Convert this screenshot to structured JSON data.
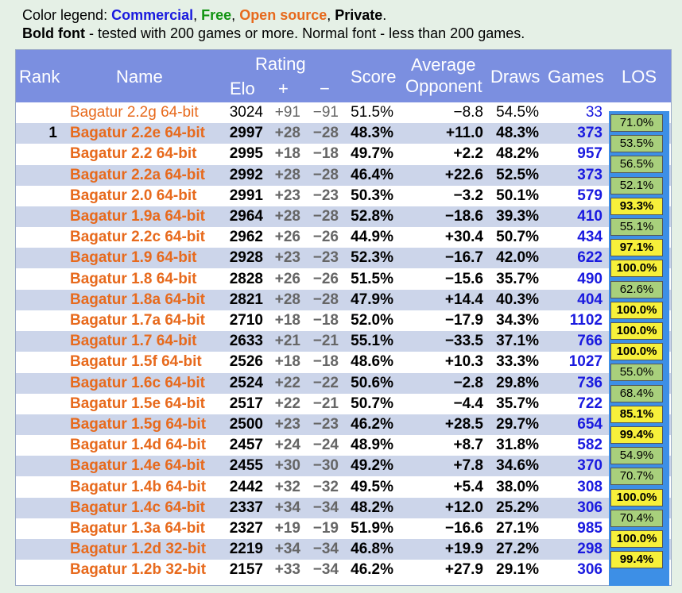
{
  "legend": {
    "line1_prefix": "Color legend: ",
    "commercial": "Commercial",
    "sep1": ", ",
    "free": "Free",
    "sep2": ", ",
    "open_source": "Open source",
    "sep3": ", ",
    "private": "Private",
    "end": ".",
    "line2_bold": "Bold font",
    "line2_rest": " - tested with 200 games or more. Normal font - less than 200 games."
  },
  "colors": {
    "commercial": "#1a1adf",
    "free": "#129412",
    "open_source": "#e76a1d",
    "header_bg": "#7b8fe0",
    "alt_row": "#ccd5ea",
    "los_green": "#a8d07c",
    "los_yellow": "#f7f03a"
  },
  "header": {
    "rank": "Rank",
    "name": "Name",
    "rating": "Rating",
    "elo": "Elo",
    "plus": "+",
    "minus": "−",
    "score": "Score",
    "avg1": "Average",
    "avg2": "Opponent",
    "draws": "Draws",
    "games": "Games",
    "los": "LOS"
  },
  "rows": [
    {
      "rank": "",
      "name": "Bagatur 2.2g 64-bit",
      "elo": "3024",
      "plus": "+91",
      "minus": "−91",
      "score": "51.5%",
      "opp": "−8.8",
      "draws": "54.5%",
      "games": "33",
      "bold": false
    },
    {
      "rank": "1",
      "name": "Bagatur 2.2e 64-bit",
      "elo": "2997",
      "plus": "+28",
      "minus": "−28",
      "score": "48.3%",
      "opp": "+11.0",
      "draws": "48.3%",
      "games": "373",
      "bold": true
    },
    {
      "rank": "",
      "name": "Bagatur 2.2 64-bit",
      "elo": "2995",
      "plus": "+18",
      "minus": "−18",
      "score": "49.7%",
      "opp": "+2.2",
      "draws": "48.2%",
      "games": "957",
      "bold": true
    },
    {
      "rank": "",
      "name": "Bagatur 2.2a 64-bit",
      "elo": "2992",
      "plus": "+28",
      "minus": "−28",
      "score": "46.4%",
      "opp": "+22.6",
      "draws": "52.5%",
      "games": "373",
      "bold": true
    },
    {
      "rank": "",
      "name": "Bagatur 2.0 64-bit",
      "elo": "2991",
      "plus": "+23",
      "minus": "−23",
      "score": "50.3%",
      "opp": "−3.2",
      "draws": "50.1%",
      "games": "579",
      "bold": true
    },
    {
      "rank": "",
      "name": "Bagatur 1.9a 64-bit",
      "elo": "2964",
      "plus": "+28",
      "minus": "−28",
      "score": "52.8%",
      "opp": "−18.6",
      "draws": "39.3%",
      "games": "410",
      "bold": true
    },
    {
      "rank": "",
      "name": "Bagatur 2.2c 64-bit",
      "elo": "2962",
      "plus": "+26",
      "minus": "−26",
      "score": "44.9%",
      "opp": "+30.4",
      "draws": "50.7%",
      "games": "434",
      "bold": true
    },
    {
      "rank": "",
      "name": "Bagatur 1.9 64-bit",
      "elo": "2928",
      "plus": "+23",
      "minus": "−23",
      "score": "52.3%",
      "opp": "−16.7",
      "draws": "42.0%",
      "games": "622",
      "bold": true
    },
    {
      "rank": "",
      "name": "Bagatur 1.8 64-bit",
      "elo": "2828",
      "plus": "+26",
      "minus": "−26",
      "score": "51.5%",
      "opp": "−15.6",
      "draws": "35.7%",
      "games": "490",
      "bold": true
    },
    {
      "rank": "",
      "name": "Bagatur 1.8a 64-bit",
      "elo": "2821",
      "plus": "+28",
      "minus": "−28",
      "score": "47.9%",
      "opp": "+14.4",
      "draws": "40.3%",
      "games": "404",
      "bold": true
    },
    {
      "rank": "",
      "name": "Bagatur 1.7a 64-bit",
      "elo": "2710",
      "plus": "+18",
      "minus": "−18",
      "score": "52.0%",
      "opp": "−17.9",
      "draws": "34.3%",
      "games": "1102",
      "bold": true
    },
    {
      "rank": "",
      "name": "Bagatur 1.7 64-bit",
      "elo": "2633",
      "plus": "+21",
      "minus": "−21",
      "score": "55.1%",
      "opp": "−33.5",
      "draws": "37.1%",
      "games": "766",
      "bold": true
    },
    {
      "rank": "",
      "name": "Bagatur 1.5f 64-bit",
      "elo": "2526",
      "plus": "+18",
      "minus": "−18",
      "score": "48.6%",
      "opp": "+10.3",
      "draws": "33.3%",
      "games": "1027",
      "bold": true
    },
    {
      "rank": "",
      "name": "Bagatur 1.6c 64-bit",
      "elo": "2524",
      "plus": "+22",
      "minus": "−22",
      "score": "50.6%",
      "opp": "−2.8",
      "draws": "29.8%",
      "games": "736",
      "bold": true
    },
    {
      "rank": "",
      "name": "Bagatur 1.5e 64-bit",
      "elo": "2517",
      "plus": "+22",
      "minus": "−21",
      "score": "50.7%",
      "opp": "−4.4",
      "draws": "35.7%",
      "games": "722",
      "bold": true
    },
    {
      "rank": "",
      "name": "Bagatur 1.5g 64-bit",
      "elo": "2500",
      "plus": "+23",
      "minus": "−23",
      "score": "46.2%",
      "opp": "+28.5",
      "draws": "29.7%",
      "games": "654",
      "bold": true
    },
    {
      "rank": "",
      "name": "Bagatur 1.4d 64-bit",
      "elo": "2457",
      "plus": "+24",
      "minus": "−24",
      "score": "48.9%",
      "opp": "+8.7",
      "draws": "31.8%",
      "games": "582",
      "bold": true
    },
    {
      "rank": "",
      "name": "Bagatur 1.4e 64-bit",
      "elo": "2455",
      "plus": "+30",
      "minus": "−30",
      "score": "49.2%",
      "opp": "+7.8",
      "draws": "34.6%",
      "games": "370",
      "bold": true
    },
    {
      "rank": "",
      "name": "Bagatur 1.4b 64-bit",
      "elo": "2442",
      "plus": "+32",
      "minus": "−32",
      "score": "49.5%",
      "opp": "+5.4",
      "draws": "38.0%",
      "games": "308",
      "bold": true
    },
    {
      "rank": "",
      "name": "Bagatur 1.4c 64-bit",
      "elo": "2337",
      "plus": "+34",
      "minus": "−34",
      "score": "48.2%",
      "opp": "+12.0",
      "draws": "25.2%",
      "games": "306",
      "bold": true
    },
    {
      "rank": "",
      "name": "Bagatur 1.3a 64-bit",
      "elo": "2327",
      "plus": "+19",
      "minus": "−19",
      "score": "51.9%",
      "opp": "−16.6",
      "draws": "27.1%",
      "games": "985",
      "bold": true
    },
    {
      "rank": "",
      "name": "Bagatur 1.2d 32-bit",
      "elo": "2219",
      "plus": "+34",
      "minus": "−34",
      "score": "46.8%",
      "opp": "+19.9",
      "draws": "27.2%",
      "games": "298",
      "bold": true
    },
    {
      "rank": "",
      "name": "Bagatur 1.2b 32-bit",
      "elo": "2157",
      "plus": "+33",
      "minus": "−34",
      "score": "46.2%",
      "opp": "+27.9",
      "draws": "29.1%",
      "games": "306",
      "bold": true
    }
  ],
  "los": [
    {
      "value": "71.0%",
      "style": "green",
      "bold": false
    },
    {
      "value": "53.5%",
      "style": "green",
      "bold": true
    },
    {
      "value": "56.5%",
      "style": "green",
      "bold": true
    },
    {
      "value": "52.1%",
      "style": "green",
      "bold": true
    },
    {
      "value": "93.3%",
      "style": "yellow",
      "bold": true
    },
    {
      "value": "55.1%",
      "style": "green",
      "bold": true
    },
    {
      "value": "97.1%",
      "style": "yellow",
      "bold": true
    },
    {
      "value": "100.0%",
      "style": "yellow",
      "bold": true
    },
    {
      "value": "62.6%",
      "style": "green",
      "bold": true
    },
    {
      "value": "100.0%",
      "style": "yellow",
      "bold": true
    },
    {
      "value": "100.0%",
      "style": "yellow",
      "bold": true
    },
    {
      "value": "100.0%",
      "style": "yellow",
      "bold": true
    },
    {
      "value": "55.0%",
      "style": "green",
      "bold": true
    },
    {
      "value": "68.4%",
      "style": "green",
      "bold": true
    },
    {
      "value": "85.1%",
      "style": "yellow",
      "bold": true
    },
    {
      "value": "99.4%",
      "style": "yellow",
      "bold": true
    },
    {
      "value": "54.9%",
      "style": "green",
      "bold": true
    },
    {
      "value": "70.7%",
      "style": "green",
      "bold": true
    },
    {
      "value": "100.0%",
      "style": "yellow",
      "bold": true
    },
    {
      "value": "70.4%",
      "style": "green",
      "bold": true
    },
    {
      "value": "100.0%",
      "style": "yellow",
      "bold": true
    },
    {
      "value": "99.4%",
      "style": "yellow",
      "bold": true
    }
  ]
}
